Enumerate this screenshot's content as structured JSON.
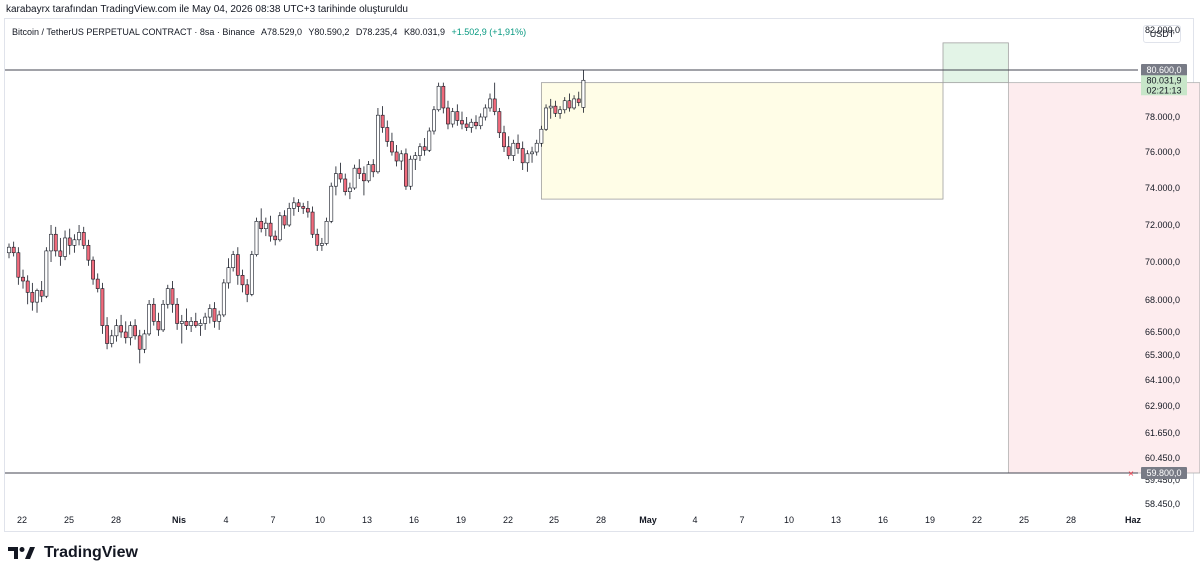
{
  "header": {
    "credit": "karabayrx tarafından TradingView.com ile May 04, 2026 08:38 UTC+3 tarihinde oluşturuldu",
    "symbol": "Bitcoin / TetherUS PERPETUAL CONTRACT · 8sa · Binance",
    "open": "A78.529,0",
    "high": "Y80.590,2",
    "low": "D78.235,4",
    "close": "K80.031,9",
    "change": "+1.502,9 (+1,91%)",
    "currency": "USDT"
  },
  "footer": {
    "brand": "TradingView"
  },
  "chart_data": {
    "type": "candlestick",
    "price_axis": {
      "ticks": [
        82000,
        80600,
        78000,
        76000,
        74000,
        72000,
        70000,
        68000,
        66500,
        65300,
        64100,
        62900,
        61650,
        60450,
        59800,
        59450,
        58450
      ],
      "tick_labels": [
        "82.000,0",
        "80.600,0",
        "78.000,0",
        "76.000,0",
        "74.000,0",
        "72.000,0",
        "70.000,0",
        "68.000,0",
        "66.500,0",
        "65.300,0",
        "64.100,0",
        "62.900,0",
        "61.650,0",
        "60.450,0",
        "59.800,0",
        "59.450,0",
        "58.450,0"
      ],
      "range": [
        57500,
        83000
      ]
    },
    "time_axis": {
      "labels": [
        "22",
        "25",
        "28",
        "Nis",
        "4",
        "7",
        "10",
        "13",
        "16",
        "19",
        "22",
        "25",
        "28",
        "May",
        "4",
        "7",
        "10",
        "13",
        "16",
        "19",
        "22",
        "25",
        "28",
        "Haz"
      ]
    },
    "price_labels": {
      "upper_level": "80.600,0",
      "current_price": "80.031,9",
      "countdown": "02:21:13",
      "lower_level": "59.800,0"
    },
    "levels": {
      "upper": 80600,
      "lower": 59800,
      "current": 80031.9
    },
    "range_box": {
      "top": 79900,
      "bottom": 73400,
      "start_bar": 114,
      "end_bar": 200
    },
    "position": {
      "entry": 79900,
      "target": 59800,
      "stop": 81550,
      "start_bar": 214,
      "end_bar": 255
    },
    "candles": [
      [
        70500,
        71000,
        70200,
        70800
      ],
      [
        70800,
        71100,
        70300,
        70500
      ],
      [
        70500,
        70800,
        68800,
        69200
      ],
      [
        69200,
        69600,
        68600,
        69000
      ],
      [
        69000,
        69300,
        67800,
        68400
      ],
      [
        68400,
        68900,
        67500,
        67900
      ],
      [
        67900,
        68600,
        67400,
        68500
      ],
      [
        68500,
        69000,
        67900,
        68200
      ],
      [
        68200,
        70800,
        68100,
        70600
      ],
      [
        70600,
        72000,
        70000,
        71500
      ],
      [
        71500,
        71900,
        70300,
        70600
      ],
      [
        70600,
        71300,
        69800,
        70300
      ],
      [
        70300,
        71700,
        70100,
        71300
      ],
      [
        71300,
        71800,
        70400,
        70900
      ],
      [
        70900,
        71500,
        70500,
        71200
      ],
      [
        71200,
        72000,
        70900,
        71600
      ],
      [
        71600,
        71900,
        70700,
        70900
      ],
      [
        70900,
        71200,
        69800,
        70100
      ],
      [
        70100,
        70300,
        68800,
        69100
      ],
      [
        69100,
        69400,
        68400,
        68600
      ],
      [
        68600,
        68900,
        66400,
        66800
      ],
      [
        66800,
        67200,
        65600,
        65900
      ],
      [
        65900,
        66600,
        65700,
        66300
      ],
      [
        66300,
        67100,
        66000,
        66800
      ],
      [
        66800,
        67300,
        66200,
        66500
      ],
      [
        66500,
        67000,
        65900,
        66200
      ],
      [
        66200,
        67000,
        65800,
        66800
      ],
      [
        66800,
        67100,
        66100,
        66300
      ],
      [
        66300,
        66600,
        64900,
        65600
      ],
      [
        65600,
        66600,
        65400,
        66400
      ],
      [
        66400,
        68000,
        66300,
        67800
      ],
      [
        67800,
        68100,
        66800,
        67000
      ],
      [
        67000,
        67400,
        66300,
        66600
      ],
      [
        66600,
        68000,
        66500,
        67800
      ],
      [
        67800,
        68800,
        67600,
        68600
      ],
      [
        68600,
        69000,
        67400,
        67800
      ],
      [
        67800,
        68100,
        66600,
        66900
      ],
      [
        66900,
        67300,
        65900,
        67000
      ],
      [
        67000,
        67600,
        66600,
        66800
      ],
      [
        66800,
        67200,
        66500,
        67000
      ],
      [
        67000,
        67400,
        66700,
        66800
      ],
      [
        66800,
        67100,
        66300,
        66900
      ],
      [
        66900,
        67400,
        66600,
        67200
      ],
      [
        67200,
        67800,
        66900,
        67600
      ],
      [
        67600,
        67900,
        66700,
        67000
      ],
      [
        67000,
        67500,
        66600,
        67300
      ],
      [
        67300,
        69100,
        67200,
        68900
      ],
      [
        68900,
        70200,
        68600,
        69700
      ],
      [
        69700,
        70600,
        69500,
        70400
      ],
      [
        70400,
        70800,
        68800,
        69300
      ],
      [
        69300,
        69600,
        68400,
        68800
      ],
      [
        68800,
        69100,
        67900,
        68300
      ],
      [
        68300,
        70600,
        68200,
        70400
      ],
      [
        70400,
        72400,
        70300,
        72200
      ],
      [
        72200,
        72900,
        71600,
        71800
      ],
      [
        71800,
        72400,
        71400,
        72100
      ],
      [
        72100,
        72500,
        71100,
        71400
      ],
      [
        71400,
        71700,
        70900,
        71200
      ],
      [
        71200,
        72700,
        71100,
        72500
      ],
      [
        72500,
        72800,
        71800,
        72000
      ],
      [
        72000,
        73200,
        71900,
        72900
      ],
      [
        72900,
        73500,
        72500,
        73200
      ],
      [
        73200,
        73400,
        72700,
        73000
      ],
      [
        73000,
        73200,
        72600,
        72900
      ],
      [
        72900,
        73300,
        72400,
        72700
      ],
      [
        72700,
        73000,
        71300,
        71500
      ],
      [
        71500,
        71800,
        70600,
        70900
      ],
      [
        70900,
        71300,
        70600,
        71000
      ],
      [
        71000,
        72400,
        70900,
        72200
      ],
      [
        72200,
        74300,
        72100,
        74100
      ],
      [
        74100,
        75200,
        73600,
        74800
      ],
      [
        74800,
        75400,
        74300,
        74500
      ],
      [
        74500,
        74800,
        73600,
        73800
      ],
      [
        73800,
        74300,
        73400,
        74000
      ],
      [
        74000,
        75300,
        73900,
        75100
      ],
      [
        75100,
        75600,
        74500,
        74800
      ],
      [
        74800,
        75200,
        73600,
        74400
      ],
      [
        74400,
        75500,
        74300,
        75300
      ],
      [
        75300,
        75600,
        74600,
        74900
      ],
      [
        74900,
        78500,
        74800,
        78100
      ],
      [
        78100,
        78600,
        77100,
        77400
      ],
      [
        77400,
        77800,
        76300,
        76600
      ],
      [
        76600,
        77100,
        75800,
        76000
      ],
      [
        76000,
        76400,
        75200,
        75500
      ],
      [
        75500,
        76100,
        75000,
        75900
      ],
      [
        75900,
        76200,
        73900,
        74100
      ],
      [
        74100,
        75800,
        73900,
        75600
      ],
      [
        75600,
        76000,
        75000,
        75800
      ],
      [
        75800,
        76500,
        75500,
        76300
      ],
      [
        76300,
        76800,
        75800,
        76100
      ],
      [
        76100,
        77400,
        76000,
        77200
      ],
      [
        77200,
        78600,
        77000,
        78400
      ],
      [
        78400,
        79900,
        78300,
        79700
      ],
      [
        79700,
        79900,
        78200,
        78500
      ],
      [
        78500,
        78900,
        77300,
        77600
      ],
      [
        77600,
        78500,
        77400,
        78300
      ],
      [
        78300,
        78700,
        77500,
        77800
      ],
      [
        77800,
        78300,
        77300,
        77600
      ],
      [
        77600,
        78000,
        77200,
        77400
      ],
      [
        77400,
        77900,
        77100,
        77700
      ],
      [
        77700,
        78100,
        77300,
        77500
      ],
      [
        77500,
        78200,
        77300,
        78000
      ],
      [
        78000,
        78700,
        77800,
        78500
      ],
      [
        78500,
        79300,
        78300,
        79000
      ],
      [
        79000,
        79900,
        78100,
        78300
      ],
      [
        78300,
        78500,
        76800,
        77100
      ],
      [
        77100,
        77500,
        76000,
        76300
      ],
      [
        76300,
        76900,
        75600,
        75800
      ],
      [
        75800,
        76700,
        75500,
        76500
      ],
      [
        76500,
        77000,
        75900,
        76200
      ],
      [
        76200,
        76600,
        75000,
        75400
      ],
      [
        75400,
        76100,
        74900,
        75900
      ],
      [
        75900,
        76300,
        75400,
        76000
      ],
      [
        76000,
        76700,
        75800,
        76500
      ],
      [
        76500,
        77500,
        76300,
        77300
      ],
      [
        77300,
        78700,
        77200,
        78500
      ],
      [
        78500,
        79000,
        77900,
        78600
      ],
      [
        78600,
        78900,
        78000,
        78200
      ],
      [
        78200,
        78600,
        77900,
        78400
      ],
      [
        78400,
        79100,
        78200,
        78900
      ],
      [
        78900,
        79300,
        78300,
        78500
      ],
      [
        78500,
        79200,
        78400,
        79000
      ],
      [
        79000,
        79400,
        78600,
        78800
      ],
      [
        78529,
        80590.2,
        78235.4,
        80031.9
      ]
    ]
  }
}
